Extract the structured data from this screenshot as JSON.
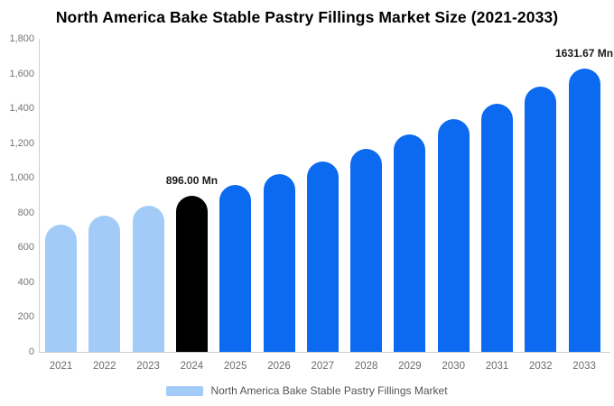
{
  "title": "North America Bake Stable Pastry Fillings Market Size (2021-2033)",
  "chart_data": {
    "type": "bar",
    "title": "North America Bake Stable Pastry Fillings Market Size (2021-2033)",
    "categories": [
      "2021",
      "2022",
      "2023",
      "2024",
      "2025",
      "2026",
      "2027",
      "2028",
      "2029",
      "2030",
      "2031",
      "2032",
      "2033"
    ],
    "values": [
      733.7,
      784.3,
      838.3,
      896.0,
      957.7,
      1023.7,
      1094.2,
      1169.5,
      1250.1,
      1336.2,
      1428.2,
      1526.6,
      1631.67
    ],
    "unit": "Mn",
    "ylim": [
      0,
      1800
    ],
    "ytick_values": [
      0,
      200,
      400,
      600,
      800,
      1000,
      1200,
      1400,
      1600,
      1800
    ],
    "ytick_labels": [
      "0",
      "200",
      "400",
      "600",
      "800",
      "1,000",
      "1,200",
      "1,400",
      "1,600",
      "1,800"
    ],
    "grid": false,
    "bar_roles": [
      "historical",
      "historical",
      "historical",
      "base",
      "forecast",
      "forecast",
      "forecast",
      "forecast",
      "forecast",
      "forecast",
      "forecast",
      "forecast",
      "forecast"
    ],
    "colors": {
      "historical": "#a2cbf7",
      "base": "#000000",
      "forecast": "#0b6af0"
    },
    "annotations": [
      {
        "category": "2024",
        "text": "896.00 Mn"
      },
      {
        "category": "2033",
        "text": "1631.67 Mn"
      }
    ],
    "legend": {
      "position": "bottom",
      "swatch_color": "#a2cbf7",
      "label": "North America Bake Stable Pastry Fillings Market"
    }
  }
}
